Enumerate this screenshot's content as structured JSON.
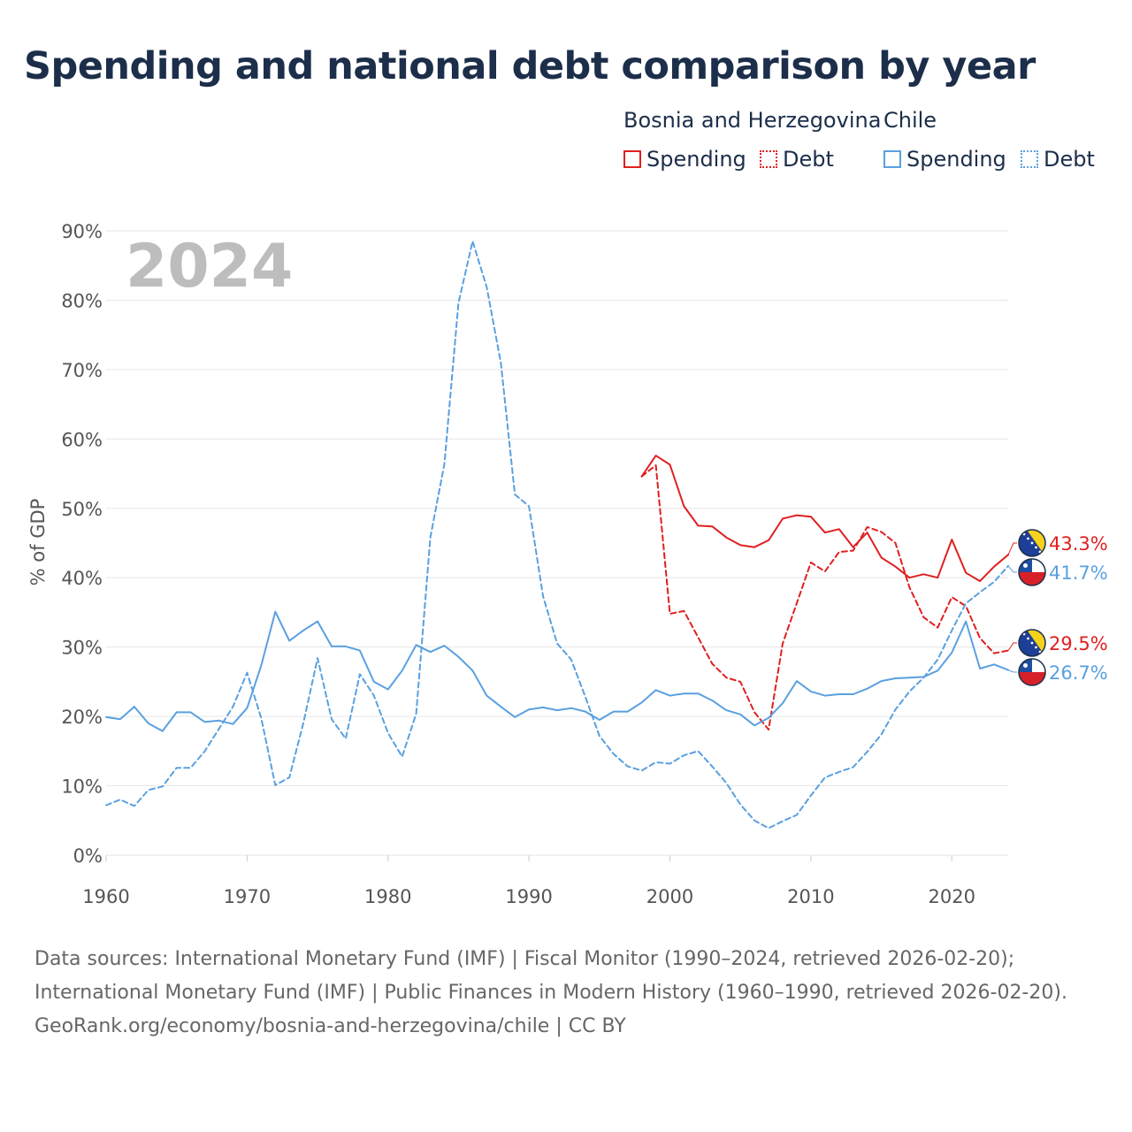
{
  "title": "Spending and national debt comparison by year",
  "legend": {
    "groups": [
      {
        "name": "Bosnia and Herzegovina",
        "color": "#e02020",
        "items": [
          "Spending",
          "Debt"
        ]
      },
      {
        "name": "Chile",
        "color": "#5aa0e0",
        "items": [
          "Spending",
          "Debt"
        ]
      }
    ]
  },
  "footer": {
    "sources": "Data sources: International Monetary Fund (IMF) | Fiscal Monitor (1990–2024, retrieved 2026-02-20); International Monetary Fund (IMF) | Public Finances in Modern History (1960–1990, retrieved 2026-02-20).",
    "attribution": "GeoRank.org/economy/bosnia-and-herzegovina/chile | CC BY"
  },
  "chart_data": {
    "type": "line",
    "year_label": "2024",
    "ylabel": "% of GDP",
    "ylim": [
      0,
      90
    ],
    "xlim": [
      1960,
      2024
    ],
    "y_ticks": [
      0,
      10,
      20,
      30,
      40,
      50,
      60,
      70,
      80,
      90
    ],
    "y_tick_labels": [
      "0%",
      "10%",
      "20%",
      "30%",
      "40%",
      "50%",
      "60%",
      "70%",
      "80%",
      "90%"
    ],
    "x_ticks": [
      1960,
      1970,
      1980,
      1990,
      2000,
      2010,
      2020
    ],
    "x_tick_labels": [
      "1960",
      "1970",
      "1980",
      "1990",
      "2000",
      "2010",
      "2020"
    ],
    "series": [
      {
        "name": "Bosnia and Herzegovina Spending",
        "country": "Bosnia and Herzegovina",
        "flag": "ba",
        "style": "solid",
        "color": "#e02020",
        "end_label": "43.3%",
        "x": [
          1998,
          1999,
          2000,
          2001,
          2002,
          2003,
          2004,
          2005,
          2006,
          2007,
          2008,
          2009,
          2010,
          2011,
          2012,
          2013,
          2014,
          2015,
          2016,
          2017,
          2018,
          2019,
          2020,
          2021,
          2022,
          2023,
          2024
        ],
        "values": [
          54.6,
          57.6,
          56.3,
          50.3,
          47.5,
          47.4,
          45.8,
          44.7,
          44.4,
          45.4,
          48.5,
          49.0,
          48.8,
          46.5,
          47.0,
          44.4,
          46.5,
          42.9,
          41.6,
          40.0,
          40.5,
          40.0,
          45.5,
          40.7,
          39.5,
          41.6,
          43.3
        ]
      },
      {
        "name": "Bosnia and Herzegovina Debt",
        "country": "Bosnia and Herzegovina",
        "flag": "ba",
        "style": "dashed",
        "color": "#e02020",
        "end_label": "29.5%",
        "x": [
          1998,
          1999,
          2000,
          2001,
          2002,
          2003,
          2004,
          2005,
          2006,
          2007,
          2008,
          2009,
          2010,
          2011,
          2012,
          2013,
          2014,
          2015,
          2016,
          2017,
          2018,
          2019,
          2020,
          2021,
          2022,
          2023,
          2024
        ],
        "values": [
          54.6,
          56.2,
          34.8,
          35.2,
          31.4,
          27.6,
          25.6,
          25.0,
          20.6,
          18.1,
          30.5,
          36.3,
          42.2,
          40.9,
          43.7,
          43.9,
          47.3,
          46.6,
          45.0,
          38.6,
          34.3,
          32.8,
          37.2,
          35.9,
          31.3,
          29.1,
          29.5
        ]
      },
      {
        "name": "Chile Spending",
        "country": "Chile",
        "flag": "cl",
        "style": "solid",
        "color": "#5aa0e0",
        "end_label": "26.7%",
        "x": [
          1960,
          1961,
          1962,
          1963,
          1964,
          1965,
          1966,
          1967,
          1968,
          1969,
          1970,
          1971,
          1972,
          1973,
          1974,
          1975,
          1976,
          1977,
          1978,
          1979,
          1980,
          1981,
          1982,
          1983,
          1984,
          1985,
          1986,
          1987,
          1988,
          1989,
          1990,
          1991,
          1992,
          1993,
          1994,
          1995,
          1996,
          1997,
          1998,
          1999,
          2000,
          2001,
          2002,
          2003,
          2004,
          2005,
          2006,
          2007,
          2008,
          2009,
          2010,
          2011,
          2012,
          2013,
          2014,
          2015,
          2016,
          2017,
          2018,
          2019,
          2020,
          2021,
          2022,
          2023,
          2024
        ],
        "values": [
          19.9,
          19.6,
          21.4,
          19.0,
          17.9,
          20.6,
          20.6,
          19.2,
          19.4,
          18.9,
          21.2,
          27.3,
          35.1,
          30.9,
          32.4,
          33.7,
          30.1,
          30.1,
          29.5,
          25.0,
          23.9,
          26.6,
          30.3,
          29.3,
          30.2,
          28.6,
          26.6,
          23.0,
          21.4,
          19.9,
          21.0,
          21.3,
          20.9,
          21.2,
          20.7,
          19.5,
          20.7,
          20.7,
          22.0,
          23.8,
          23.0,
          23.3,
          23.3,
          22.3,
          20.9,
          20.3,
          18.7,
          19.8,
          21.9,
          25.1,
          23.6,
          23.0,
          23.2,
          23.2,
          24.0,
          25.1,
          25.5,
          25.6,
          25.7,
          26.6,
          29.2,
          33.7,
          26.9,
          27.5,
          26.7
        ]
      },
      {
        "name": "Chile Debt",
        "country": "Chile",
        "flag": "cl",
        "style": "dashed",
        "color": "#5aa0e0",
        "end_label": "41.7%",
        "x": [
          1960,
          1961,
          1962,
          1963,
          1964,
          1965,
          1966,
          1967,
          1968,
          1969,
          1970,
          1971,
          1972,
          1973,
          1974,
          1975,
          1976,
          1977,
          1978,
          1979,
          1980,
          1981,
          1982,
          1983,
          1984,
          1985,
          1986,
          1987,
          1988,
          1989,
          1990,
          1991,
          1992,
          1993,
          1994,
          1995,
          1996,
          1997,
          1998,
          1999,
          2000,
          2001,
          2002,
          2003,
          2004,
          2005,
          2006,
          2007,
          2008,
          2009,
          2010,
          2011,
          2012,
          2013,
          2014,
          2015,
          2016,
          2017,
          2018,
          2019,
          2020,
          2021,
          2022,
          2023,
          2024
        ],
        "values": [
          7.2,
          8.0,
          7.1,
          9.4,
          9.9,
          12.6,
          12.6,
          15.0,
          18.2,
          21.4,
          26.3,
          19.8,
          10.1,
          11.2,
          19.1,
          28.4,
          19.6,
          16.8,
          26.1,
          23.0,
          17.6,
          14.2,
          20.4,
          45.8,
          56.4,
          79.6,
          88.5,
          81.9,
          71.0,
          52.0,
          50.3,
          37.3,
          30.5,
          28.2,
          22.8,
          17.2,
          14.6,
          12.8,
          12.2,
          13.4,
          13.2,
          14.4,
          15.0,
          12.8,
          10.4,
          7.3,
          5.0,
          3.9,
          4.9,
          5.8,
          8.6,
          11.2,
          12.0,
          12.7,
          14.9,
          17.4,
          21.0,
          23.6,
          25.6,
          28.2,
          32.4,
          36.3,
          37.9,
          39.4,
          41.7
        ]
      }
    ]
  }
}
